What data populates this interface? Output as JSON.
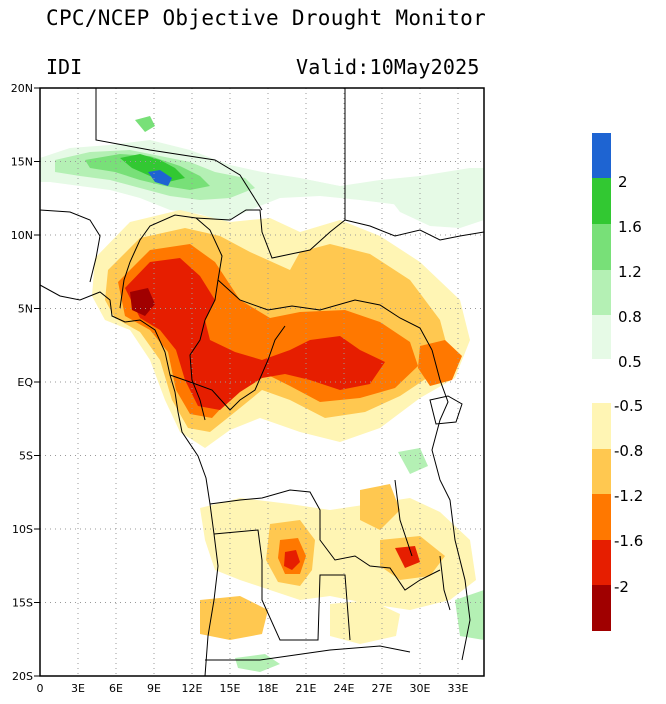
{
  "header": {
    "title": "CPC/NCEP Objective Drought Monitor",
    "index_label": "IDI",
    "valid_prefix": "Valid:",
    "valid_date": "10May2025"
  },
  "map": {
    "lon_ticks": [
      "0",
      "3E",
      "6E",
      "9E",
      "12E",
      "15E",
      "18E",
      "21E",
      "24E",
      "27E",
      "30E",
      "33E"
    ],
    "lat_ticks": [
      "20N",
      "15N",
      "10N",
      "5N",
      "EQ",
      "5S",
      "10S",
      "15S",
      "20S"
    ],
    "extent": {
      "lon": [
        0,
        35
      ],
      "lat": [
        -20,
        20
      ]
    },
    "grid": "dotted"
  },
  "legend": {
    "wet_labels": [
      "2",
      "1.6",
      "1.2",
      "0.8",
      "0.5"
    ],
    "dry_labels": [
      "-0.5",
      "-0.8",
      "-1.2",
      "-1.6",
      "-2"
    ],
    "wet_colors": [
      "#1e64d2",
      "#32c832",
      "#78e078",
      "#b4f0b4",
      "#e6fae6"
    ],
    "dry_colors": [
      "#fff5b4",
      "#ffc850",
      "#ff7800",
      "#e61e00",
      "#a00000"
    ]
  }
}
